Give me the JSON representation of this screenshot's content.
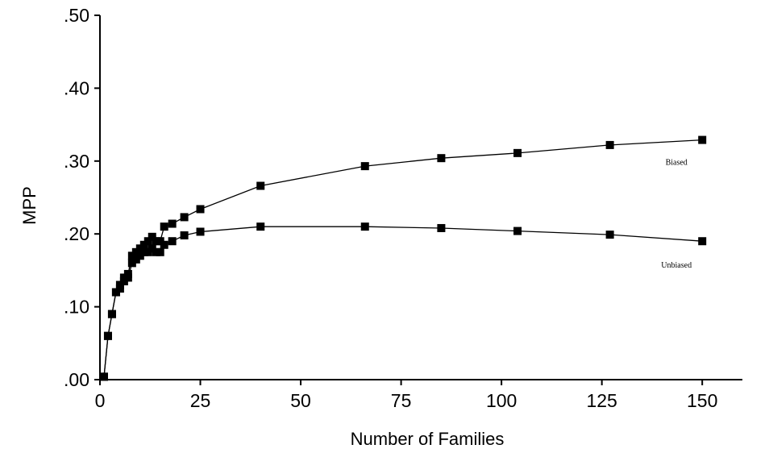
{
  "chart_data": {
    "type": "line",
    "xlabel": "Number of Families",
    "ylabel": "MPP",
    "xlim": [
      0,
      160
    ],
    "ylim": [
      0,
      0.5
    ],
    "x_ticks": [
      0,
      25,
      50,
      75,
      100,
      125,
      150
    ],
    "x_tick_labels": [
      "0",
      "25",
      "50",
      "75",
      "100",
      "125",
      "150"
    ],
    "y_ticks": [
      0,
      0.1,
      0.2,
      0.3,
      0.4,
      0.5
    ],
    "y_tick_labels": [
      ".00",
      ".10",
      ".20",
      ".30",
      ".40",
      ".50"
    ],
    "grid": false,
    "marker": "square",
    "series": [
      {
        "name": "Biased",
        "x": [
          1,
          2,
          3,
          4,
          5,
          6,
          7,
          8,
          9,
          10,
          11,
          12,
          13,
          14,
          15,
          16,
          18,
          21,
          25,
          40,
          66,
          85,
          104,
          127,
          150
        ],
        "y": [
          0.004,
          0.06,
          0.09,
          0.12,
          0.13,
          0.14,
          0.145,
          0.17,
          0.175,
          0.18,
          0.185,
          0.19,
          0.196,
          0.19,
          0.19,
          0.21,
          0.214,
          0.223,
          0.234,
          0.266,
          0.293,
          0.304,
          0.311,
          0.322,
          0.329
        ]
      },
      {
        "name": "Unbiased",
        "x": [
          1,
          2,
          3,
          4,
          5,
          6,
          7,
          8,
          9,
          10,
          11,
          12,
          13,
          14,
          15,
          16,
          18,
          21,
          25,
          40,
          66,
          85,
          104,
          127,
          150
        ],
        "y": [
          0.004,
          0.06,
          0.09,
          0.12,
          0.125,
          0.135,
          0.14,
          0.16,
          0.165,
          0.17,
          0.175,
          0.175,
          0.18,
          0.175,
          0.175,
          0.185,
          0.19,
          0.198,
          0.203,
          0.21,
          0.21,
          0.208,
          0.204,
          0.199,
          0.19
        ]
      }
    ]
  }
}
